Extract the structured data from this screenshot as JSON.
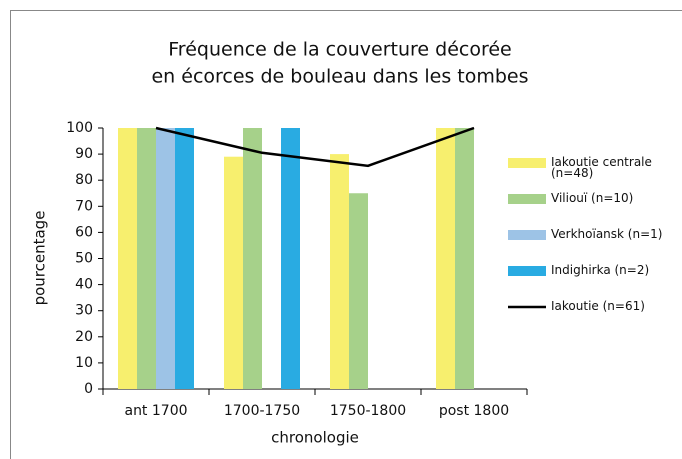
{
  "chart_data": {
    "type": "bar",
    "title": [
      "Fréquence de la couverture décorée",
      "en écorces de bouleau dans les tombes"
    ],
    "x_label": "chronologie",
    "y_label": "pourcentage",
    "categories": [
      "ant 1700",
      "1700-1750",
      "1750-1800",
      "post 1800"
    ],
    "series": [
      {
        "name": "Iakoutie centrale (n=48)",
        "color": "#f7ef6e",
        "values": [
          100,
          89,
          90,
          100
        ]
      },
      {
        "name": "Viliouï (n=10)",
        "color": "#a6d18a",
        "values": [
          100,
          100,
          75,
          100
        ]
      },
      {
        "name": "Verkhoïansk (n=1)",
        "color": "#9dc3e6",
        "values": [
          100,
          null,
          null,
          null
        ]
      },
      {
        "name": "Indighirka (n=2)",
        "color": "#29abe2",
        "values": [
          100,
          100,
          null,
          null
        ]
      },
      {
        "name": "Iakoutie (n=61)",
        "color": "#000000",
        "type": "line",
        "values": [
          100,
          90.5,
          85.5,
          100
        ]
      }
    ],
    "ylim": [
      0,
      100
    ],
    "yticks": [
      0,
      10,
      20,
      30,
      40,
      50,
      60,
      70,
      80,
      90,
      100
    ],
    "legend": "right"
  }
}
